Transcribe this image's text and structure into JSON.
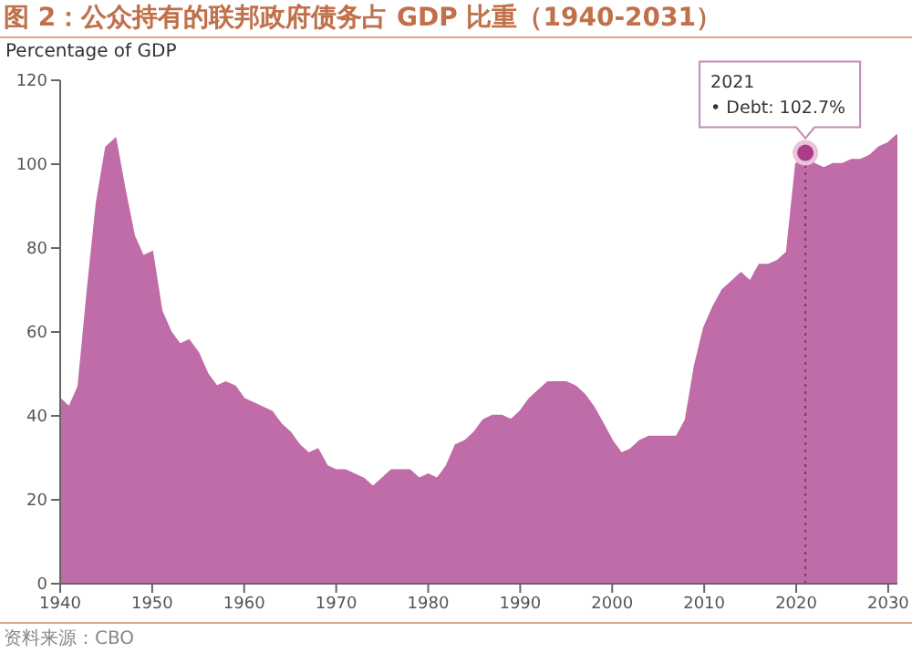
{
  "chart_data": {
    "type": "area",
    "title": "图 2：公众持有的联邦政府债务占 GDP 比重（1940-2031）",
    "ylabel": "Percentage of GDP",
    "annotations": [
      {
        "text": "2021\n• Debt: 102.7%",
        "x": 2021,
        "y": 102.7
      },
      "资料来源：CBO"
    ],
    "x": [
      1940,
      1941,
      1942,
      1943,
      1944,
      1945,
      1946,
      1947,
      1948,
      1949,
      1950,
      1951,
      1952,
      1953,
      1954,
      1955,
      1956,
      1957,
      1958,
      1959,
      1960,
      1961,
      1962,
      1963,
      1964,
      1965,
      1966,
      1967,
      1968,
      1969,
      1970,
      1971,
      1972,
      1973,
      1974,
      1975,
      1976,
      1977,
      1978,
      1979,
      1980,
      1981,
      1982,
      1983,
      1984,
      1985,
      1986,
      1987,
      1988,
      1989,
      1990,
      1991,
      1992,
      1993,
      1994,
      1995,
      1996,
      1997,
      1998,
      1999,
      2000,
      2001,
      2002,
      2003,
      2004,
      2005,
      2006,
      2007,
      2008,
      2009,
      2010,
      2011,
      2012,
      2013,
      2014,
      2015,
      2016,
      2017,
      2018,
      2019,
      2020,
      2021,
      2022,
      2023,
      2024,
      2025,
      2026,
      2027,
      2028,
      2029,
      2030,
      2031
    ],
    "series": [
      {
        "color": "#c06ca8",
        "values": [
          44,
          42,
          47,
          70,
          91,
          104,
          106,
          94,
          83,
          78,
          79,
          65,
          60,
          57,
          58,
          55,
          50,
          47,
          48,
          47,
          44,
          43,
          42,
          41,
          38,
          36,
          33,
          31,
          32,
          28,
          27,
          27,
          26,
          25,
          23,
          25,
          27,
          27,
          27,
          25,
          26,
          25,
          28,
          33,
          34,
          36,
          39,
          40,
          40,
          39,
          41,
          44,
          46,
          48,
          48,
          48,
          47,
          45,
          42,
          38,
          34,
          31,
          32,
          34,
          35,
          35,
          35,
          35,
          39,
          52,
          61,
          66,
          70,
          72,
          74,
          72,
          76,
          76,
          77,
          79,
          100,
          102.7,
          100,
          99,
          100,
          100,
          101,
          101,
          102,
          104,
          105,
          107
        ]
      }
    ],
    "xlim": [
      1940,
      2031
    ],
    "xticks": [
      1940,
      1950,
      1960,
      1970,
      1980,
      1990,
      2000,
      2010,
      2020,
      2030
    ],
    "ylim": [
      0,
      120
    ],
    "yticks": [
      0,
      20,
      40,
      60,
      80,
      100,
      120
    ],
    "ref_lines": [
      {
        "axis": "x",
        "value": 2021,
        "label": null,
        "color": "#7a3a6a",
        "line_style": "dotted"
      }
    ],
    "grid": false,
    "legend": false
  }
}
